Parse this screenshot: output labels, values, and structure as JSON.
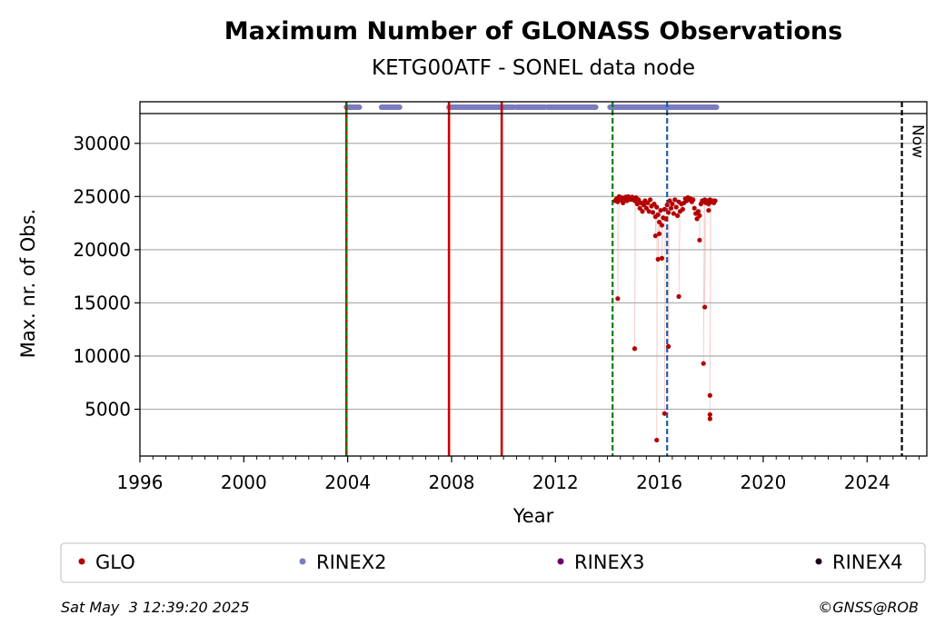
{
  "chart_data": {
    "type": "scatter",
    "title": "Maximum Number of GLONASS Observations",
    "subtitle": "KETG00ATF - SONEL data node",
    "xlabel": "Year",
    "ylabel": "Max. nr. of Obs.",
    "xlim": [
      1996.0,
      2026.3
    ],
    "ylim": [
      600,
      32800
    ],
    "xticks": [
      "1996",
      "2000",
      "2004",
      "2008",
      "2012",
      "2016",
      "2020",
      "2024"
    ],
    "yticks": [
      "5000",
      "10000",
      "15000",
      "20000",
      "25000",
      "30000"
    ],
    "grid": "horizontal",
    "now_label": "Now",
    "now_x": 2025.34,
    "colors": {
      "GLO": "#b30000",
      "RINEX2": "#7b7bbf",
      "RINEX3": "#6b006b",
      "RINEX4": "#200020",
      "red_events": "#cc0000",
      "green_events": "#008000",
      "blue_events": "#1f5fa8"
    },
    "event_lines": {
      "red_solid": [
        2003.95,
        2007.9,
        2009.93
      ],
      "green_dashed": [
        2003.95,
        2014.2
      ],
      "blue_dashed": [
        2016.3
      ]
    },
    "rinex2_availability": [
      [
        2003.95,
        2004.45
      ],
      [
        2005.3,
        2006.0
      ],
      [
        2007.9,
        2008.7
      ],
      [
        2008.75,
        2010.4
      ],
      [
        2010.5,
        2011.6
      ],
      [
        2011.7,
        2013.55
      ],
      [
        2014.1,
        2018.2
      ]
    ],
    "series": [
      {
        "name": "GLO",
        "points": [
          [
            14.3,
            24600
          ],
          [
            14.35,
            24800
          ],
          [
            14.4,
            24500
          ],
          [
            14.45,
            25000
          ],
          [
            14.5,
            24700
          ],
          [
            14.55,
            24900
          ],
          [
            14.6,
            24400
          ],
          [
            14.65,
            24800
          ],
          [
            14.7,
            24950
          ],
          [
            14.75,
            24600
          ],
          [
            14.8,
            25000
          ],
          [
            14.85,
            24900
          ],
          [
            14.9,
            24700
          ],
          [
            14.95,
            24950
          ],
          [
            15.0,
            24800
          ],
          [
            15.05,
            24600
          ],
          [
            15.1,
            24900
          ],
          [
            15.15,
            24300
          ],
          [
            15.2,
            24700
          ],
          [
            15.25,
            23900
          ],
          [
            15.3,
            24400
          ],
          [
            15.35,
            23600
          ],
          [
            15.4,
            24200
          ],
          [
            15.45,
            24600
          ],
          [
            15.5,
            23900
          ],
          [
            15.55,
            24400
          ],
          [
            15.6,
            23600
          ],
          [
            15.65,
            24700
          ],
          [
            15.7,
            24100
          ],
          [
            15.75,
            23500
          ],
          [
            15.8,
            24300
          ],
          [
            15.85,
            23100
          ],
          [
            15.9,
            24000
          ],
          [
            15.95,
            23300
          ],
          [
            16.0,
            22600
          ],
          [
            16.05,
            23700
          ],
          [
            16.1,
            22300
          ],
          [
            16.15,
            23000
          ],
          [
            16.2,
            23800
          ],
          [
            16.25,
            22900
          ],
          [
            16.3,
            24200
          ],
          [
            16.35,
            23500
          ],
          [
            16.4,
            24600
          ],
          [
            16.45,
            23900
          ],
          [
            16.5,
            24300
          ],
          [
            16.55,
            23400
          ],
          [
            16.6,
            24700
          ],
          [
            16.65,
            24000
          ],
          [
            16.7,
            23200
          ],
          [
            16.75,
            24500
          ],
          [
            16.8,
            23600
          ],
          [
            16.85,
            24300
          ],
          [
            16.9,
            23800
          ],
          [
            16.95,
            24400
          ],
          [
            17.0,
            24800
          ],
          [
            17.05,
            24600
          ],
          [
            17.1,
            24900
          ],
          [
            17.15,
            24700
          ],
          [
            17.2,
            24800
          ],
          [
            17.25,
            24500
          ],
          [
            17.3,
            24700
          ],
          [
            17.35,
            23900
          ],
          [
            17.4,
            23400
          ],
          [
            17.45,
            22900
          ],
          [
            17.5,
            23600
          ],
          [
            17.55,
            23200
          ],
          [
            17.6,
            24300
          ],
          [
            17.65,
            24600
          ],
          [
            17.7,
            24500
          ],
          [
            17.75,
            24700
          ],
          [
            17.8,
            24400
          ],
          [
            17.85,
            24600
          ],
          [
            17.9,
            24300
          ],
          [
            17.95,
            24700
          ],
          [
            18.0,
            24500
          ],
          [
            18.05,
            24600
          ],
          [
            18.1,
            24400
          ],
          [
            18.15,
            24600
          ],
          [
            17.9,
            23700
          ],
          [
            14.4,
            15400
          ],
          [
            15.05,
            10700
          ],
          [
            15.95,
            19100
          ],
          [
            16.1,
            19200
          ],
          [
            15.85,
            21300
          ],
          [
            16.0,
            21500
          ],
          [
            15.9,
            2100
          ],
          [
            16.2,
            4600
          ],
          [
            16.35,
            10900
          ],
          [
            16.75,
            15600
          ],
          [
            17.55,
            20900
          ],
          [
            17.75,
            14600
          ],
          [
            17.7,
            9300
          ],
          [
            17.95,
            6300
          ],
          [
            17.95,
            4500
          ],
          [
            17.95,
            4100
          ]
        ]
      },
      {
        "name": "RINEX2"
      },
      {
        "name": "RINEX3"
      },
      {
        "name": "RINEX4"
      }
    ],
    "legend": [
      "GLO",
      "RINEX2",
      "RINEX3",
      "RINEX4"
    ],
    "legend_placement": "bottom"
  },
  "footer": {
    "timestamp": "Sat May  3 12:39:20 2025",
    "credit": "©GNSS@ROB"
  }
}
